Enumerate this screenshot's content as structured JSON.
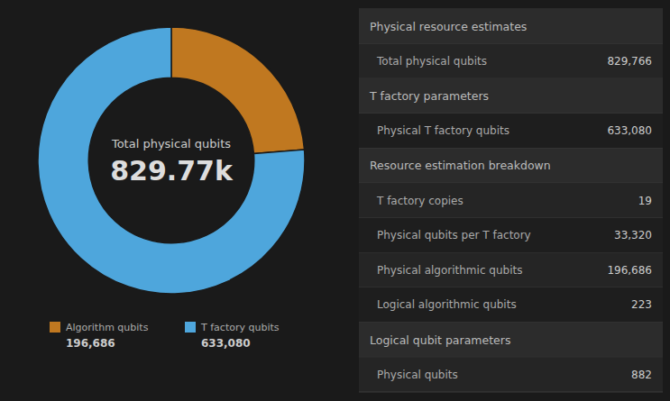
{
  "chart_data": [
    {
      "type": "donut",
      "categories": [
        "Algorithm qubits",
        "T factory qubits"
      ],
      "values": [
        196686,
        633080
      ],
      "value_labels": [
        "196,686",
        "633,080"
      ],
      "data_labels": true,
      "colors": [
        "#c07820",
        "#4ea6dc"
      ],
      "legend": "bottom",
      "annotations": [
        "Total physical qubits",
        "829.77k"
      ]
    },
    {
      "type": "table",
      "sections": [
        {
          "header": "Physical resource estimates",
          "rows": [
            {
              "label": "Total physical qubits",
              "value": "829,766"
            }
          ]
        },
        {
          "header": "T factory parameters",
          "rows": [
            {
              "label": "Physical T factory qubits",
              "value": "633,080"
            }
          ]
        },
        {
          "header": "Resource estimation breakdown",
          "rows": [
            {
              "label": "T factory copies",
              "value": "19"
            },
            {
              "label": "Physical qubits per T factory",
              "value": "33,320"
            },
            {
              "label": "Physical algorithmic qubits",
              "value": "196,686"
            },
            {
              "label": "Logical algorithmic qubits",
              "value": "223"
            }
          ]
        },
        {
          "header": "Logical qubit parameters",
          "rows": [
            {
              "label": "Physical qubits",
              "value": "882"
            }
          ]
        }
      ]
    }
  ]
}
